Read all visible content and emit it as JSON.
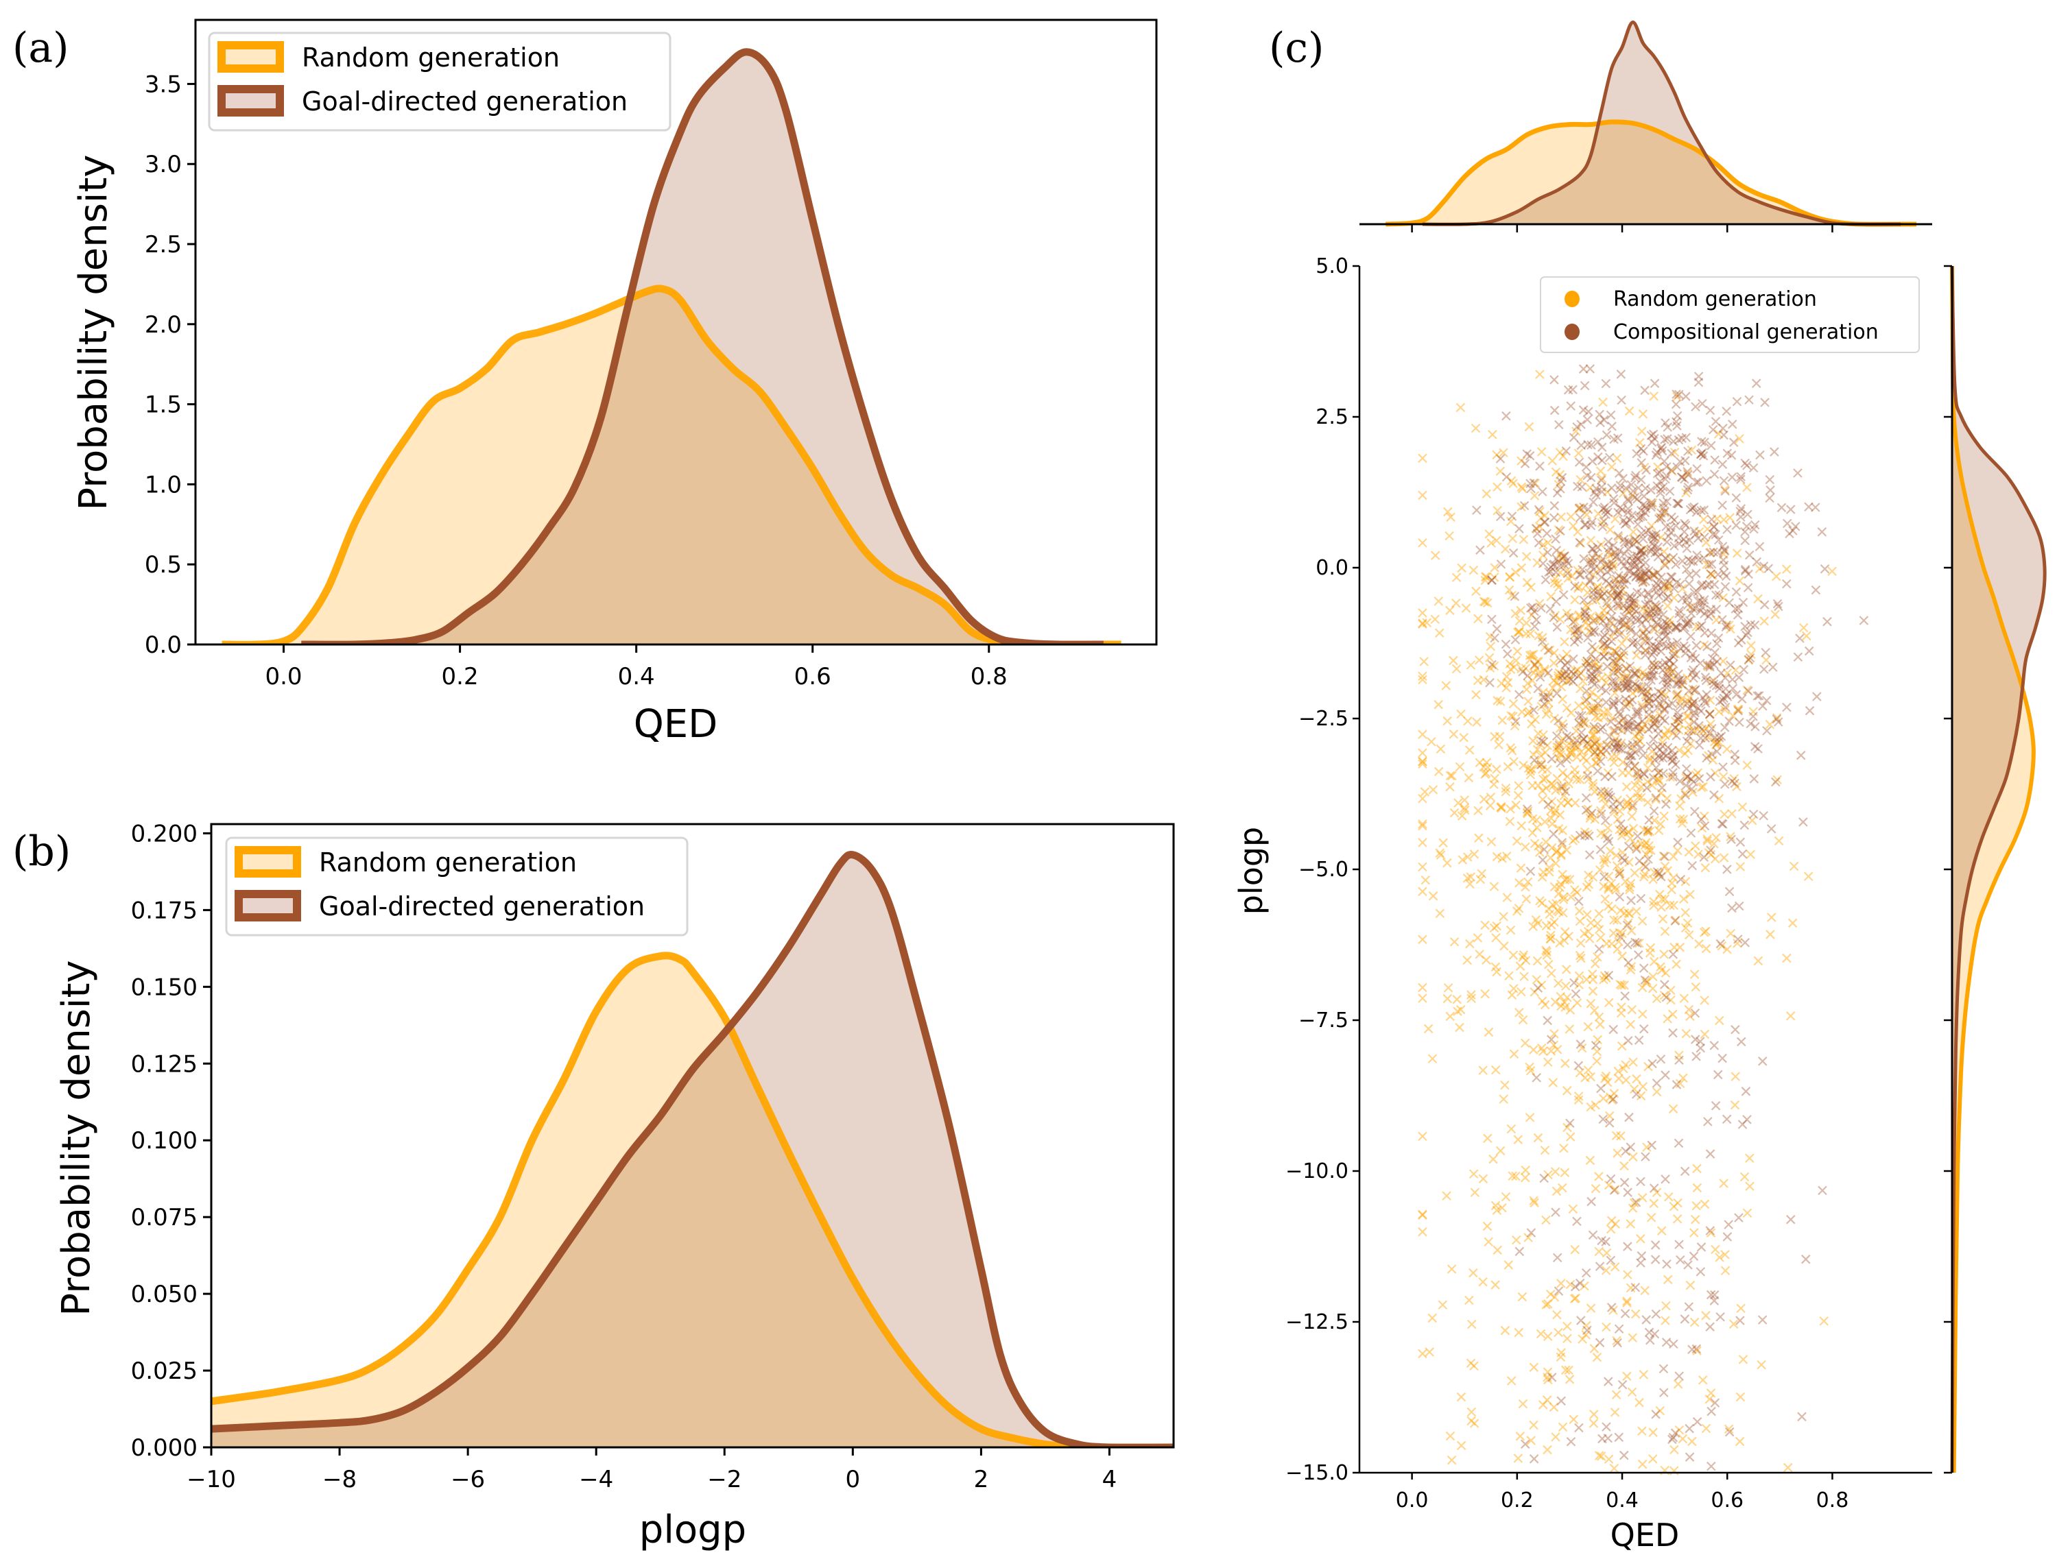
{
  "colors": {
    "random_line": "#FFA500",
    "random_fill": "#FFE8C2",
    "goal_line": "#A0522D",
    "goal_fill": "#E8D4CC",
    "overlap_fill": "#E8C29B"
  },
  "chart_data": [
    {
      "id": "a",
      "panel_label": "(a)",
      "type": "area",
      "title": "",
      "xlabel": "QED",
      "ylabel": "Probability density",
      "xlim": [
        -0.1,
        0.99
      ],
      "ylim": [
        0,
        3.9
      ],
      "xticks": [
        0.0,
        0.2,
        0.4,
        0.6,
        0.8
      ],
      "xtick_labels": [
        "0.0",
        "0.2",
        "0.4",
        "0.6",
        "0.8"
      ],
      "yticks": [
        0.0,
        0.5,
        1.0,
        1.5,
        2.0,
        2.5,
        3.0,
        3.5
      ],
      "ytick_labels": [
        "0.0",
        "0.5",
        "1.0",
        "1.5",
        "2.0",
        "2.5",
        "3.0",
        "3.5"
      ],
      "legend": {
        "placement": "top-left",
        "entries": [
          "Random generation",
          "Goal-directed generation"
        ]
      },
      "series": [
        {
          "name": "Random generation",
          "x": [
            -0.07,
            -0.03,
            0.0,
            0.02,
            0.05,
            0.08,
            0.11,
            0.14,
            0.17,
            0.2,
            0.23,
            0.26,
            0.29,
            0.32,
            0.35,
            0.38,
            0.41,
            0.43,
            0.45,
            0.48,
            0.51,
            0.54,
            0.57,
            0.6,
            0.63,
            0.66,
            0.69,
            0.72,
            0.75,
            0.78,
            0.81,
            0.84,
            0.88,
            0.95
          ],
          "y": [
            0.0,
            0.0,
            0.02,
            0.1,
            0.35,
            0.75,
            1.05,
            1.3,
            1.52,
            1.6,
            1.72,
            1.9,
            1.95,
            2.0,
            2.06,
            2.13,
            2.2,
            2.22,
            2.15,
            1.9,
            1.72,
            1.58,
            1.35,
            1.1,
            0.82,
            0.58,
            0.43,
            0.35,
            0.25,
            0.08,
            0.02,
            0.0,
            0.0,
            0.0
          ]
        },
        {
          "name": "Goal-directed generation",
          "x": [
            0.02,
            0.08,
            0.12,
            0.15,
            0.18,
            0.21,
            0.24,
            0.27,
            0.3,
            0.33,
            0.36,
            0.39,
            0.42,
            0.45,
            0.47,
            0.5,
            0.525,
            0.55,
            0.57,
            0.6,
            0.63,
            0.66,
            0.69,
            0.72,
            0.75,
            0.78,
            0.81,
            0.84,
            0.88,
            0.93
          ],
          "y": [
            0.0,
            0.0,
            0.01,
            0.03,
            0.08,
            0.2,
            0.32,
            0.5,
            0.72,
            0.98,
            1.42,
            2.1,
            2.75,
            3.2,
            3.42,
            3.6,
            3.7,
            3.6,
            3.33,
            2.65,
            1.98,
            1.4,
            0.9,
            0.55,
            0.35,
            0.15,
            0.04,
            0.01,
            0.0,
            0.0
          ]
        }
      ]
    },
    {
      "id": "b",
      "panel_label": "(b)",
      "type": "area",
      "title": "",
      "xlabel": "plogp",
      "ylabel": "Probability density",
      "xlim": [
        -10,
        5
      ],
      "ylim": [
        0,
        0.203
      ],
      "xticks": [
        -10,
        -8,
        -6,
        -4,
        -2,
        0,
        2,
        4
      ],
      "xtick_labels": [
        "−10",
        "−8",
        "−6",
        "−4",
        "−2",
        "0",
        "2",
        "4"
      ],
      "yticks": [
        0.0,
        0.025,
        0.05,
        0.075,
        0.1,
        0.125,
        0.15,
        0.175,
        0.2
      ],
      "ytick_labels": [
        "0.000",
        "0.025",
        "0.050",
        "0.075",
        "0.100",
        "0.125",
        "0.150",
        "0.175",
        "0.200"
      ],
      "legend": {
        "placement": "top-left",
        "entries": [
          "Random generation",
          "Goal-directed generation"
        ]
      },
      "series": [
        {
          "name": "Random generation",
          "x": [
            -10,
            -9,
            -8,
            -7.5,
            -7,
            -6.5,
            -6,
            -5.5,
            -5,
            -4.5,
            -4,
            -3.5,
            -3,
            -2.7,
            -2.5,
            -2,
            -1.5,
            -1,
            -0.5,
            0,
            0.5,
            1,
            1.5,
            2,
            2.5,
            3,
            3.5,
            4,
            5
          ],
          "y": [
            0.015,
            0.018,
            0.022,
            0.026,
            0.033,
            0.043,
            0.058,
            0.075,
            0.1,
            0.12,
            0.142,
            0.156,
            0.16,
            0.159,
            0.155,
            0.14,
            0.118,
            0.096,
            0.075,
            0.055,
            0.038,
            0.024,
            0.013,
            0.006,
            0.003,
            0.001,
            0.0,
            0.0,
            0.0
          ]
        },
        {
          "name": "Goal-directed generation",
          "x": [
            -10,
            -9,
            -8,
            -7.5,
            -7,
            -6.5,
            -6,
            -5.5,
            -5,
            -4.5,
            -4,
            -3.5,
            -3,
            -2.5,
            -2,
            -1.5,
            -1,
            -0.5,
            -0.2,
            0,
            0.3,
            0.6,
            1,
            1.5,
            2,
            2.3,
            2.6,
            3,
            3.5,
            4,
            5
          ],
          "y": [
            0.006,
            0.007,
            0.008,
            0.009,
            0.012,
            0.018,
            0.026,
            0.036,
            0.05,
            0.065,
            0.08,
            0.095,
            0.108,
            0.123,
            0.135,
            0.148,
            0.163,
            0.18,
            0.19,
            0.193,
            0.188,
            0.175,
            0.145,
            0.105,
            0.058,
            0.03,
            0.015,
            0.005,
            0.001,
            0.0,
            0.0
          ]
        }
      ]
    },
    {
      "id": "c",
      "panel_label": "(c)",
      "type": "scatter",
      "title": "",
      "xlabel": "QED",
      "ylabel": "plogp",
      "xlim": [
        -0.1,
        0.99
      ],
      "ylim": [
        -15,
        5
      ],
      "xticks": [
        0.0,
        0.2,
        0.4,
        0.6,
        0.8
      ],
      "xtick_labels": [
        "0.0",
        "0.2",
        "0.4",
        "0.6",
        "0.8"
      ],
      "yticks": [
        5.0,
        2.5,
        0.0,
        -2.5,
        -5.0,
        -7.5,
        -10.0,
        -12.5,
        -15.0
      ],
      "ytick_labels": [
        "5.0",
        "2.5",
        "0.0",
        "−2.5",
        "−5.0",
        "−7.5",
        "−10.0",
        "−12.5",
        "−15.0"
      ],
      "marker": "x",
      "legend": {
        "placement": "top-right",
        "entries": [
          "Random generation",
          "Compositional generation"
        ]
      },
      "series": [
        {
          "name": "Random generation",
          "approx_count": 5000,
          "qed_center": 0.33,
          "qed_spread": 0.17,
          "plogp_center": -3.0,
          "plogp_spread": 2.6,
          "plogp_tail_low": -15
        },
        {
          "name": "Compositional generation",
          "approx_count": 5000,
          "qed_center": 0.45,
          "qed_spread": 0.13,
          "plogp_center": -0.8,
          "plogp_spread": 2.0,
          "plogp_tail_low": -15
        }
      ],
      "top_marginal": {
        "xlabel": "QED",
        "series": [
          {
            "name": "Random generation",
            "x": [
              -0.05,
              0.0,
              0.03,
              0.06,
              0.1,
              0.14,
              0.18,
              0.22,
              0.26,
              0.3,
              0.34,
              0.38,
              0.42,
              0.46,
              0.5,
              0.54,
              0.58,
              0.62,
              0.66,
              0.7,
              0.74,
              0.78,
              0.82,
              0.86,
              0.96
            ],
            "y": [
              0.0,
              0.01,
              0.05,
              0.18,
              0.38,
              0.52,
              0.6,
              0.72,
              0.78,
              0.8,
              0.8,
              0.82,
              0.81,
              0.76,
              0.68,
              0.6,
              0.48,
              0.33,
              0.24,
              0.18,
              0.1,
              0.04,
              0.01,
              0.0,
              0.0
            ]
          },
          {
            "name": "Compositional generation",
            "x": [
              0.02,
              0.1,
              0.15,
              0.2,
              0.24,
              0.28,
              0.32,
              0.34,
              0.36,
              0.38,
              0.4,
              0.42,
              0.44,
              0.46,
              0.48,
              0.5,
              0.52,
              0.55,
              0.58,
              0.62,
              0.66,
              0.7,
              0.75,
              0.8,
              0.85,
              0.93
            ],
            "y": [
              0.0,
              0.0,
              0.02,
              0.1,
              0.2,
              0.28,
              0.4,
              0.55,
              0.9,
              1.25,
              1.42,
              1.62,
              1.45,
              1.35,
              1.22,
              1.05,
              0.85,
              0.62,
              0.42,
              0.26,
              0.18,
              0.12,
              0.06,
              0.01,
              0.0,
              0.0
            ]
          }
        ]
      },
      "right_marginal": {
        "ylabel": "plogp",
        "series": [
          {
            "name": "Random generation",
            "y": [
              5,
              3,
              2.5,
              2,
              1.5,
              1,
              0.5,
              0,
              -0.5,
              -1,
              -1.5,
              -2,
              -2.5,
              -3,
              -3.5,
              -4,
              -4.5,
              -5,
              -5.5,
              -6,
              -7,
              -8,
              -9,
              -10,
              -12,
              -15
            ],
            "x": [
              0.0,
              0.01,
              0.02,
              0.05,
              0.1,
              0.17,
              0.25,
              0.34,
              0.45,
              0.55,
              0.66,
              0.76,
              0.84,
              0.88,
              0.86,
              0.8,
              0.68,
              0.52,
              0.38,
              0.27,
              0.17,
              0.11,
              0.08,
              0.06,
              0.04,
              0.02
            ]
          },
          {
            "name": "Compositional generation",
            "y": [
              5,
              3,
              2.5,
              2,
              1.5,
              1,
              0.5,
              0,
              -0.5,
              -1,
              -1.5,
              -2,
              -2.5,
              -3,
              -3.5,
              -4,
              -4.5,
              -5,
              -5.5,
              -6,
              -7,
              -8,
              -9,
              -10,
              -12,
              -15
            ],
            "x": [
              0.0,
              0.03,
              0.1,
              0.3,
              0.6,
              0.8,
              0.95,
              1.0,
              0.98,
              0.9,
              0.8,
              0.76,
              0.72,
              0.66,
              0.58,
              0.45,
              0.32,
              0.22,
              0.15,
              0.1,
              0.06,
              0.04,
              0.03,
              0.02,
              0.01,
              0.0
            ]
          }
        ]
      }
    }
  ]
}
